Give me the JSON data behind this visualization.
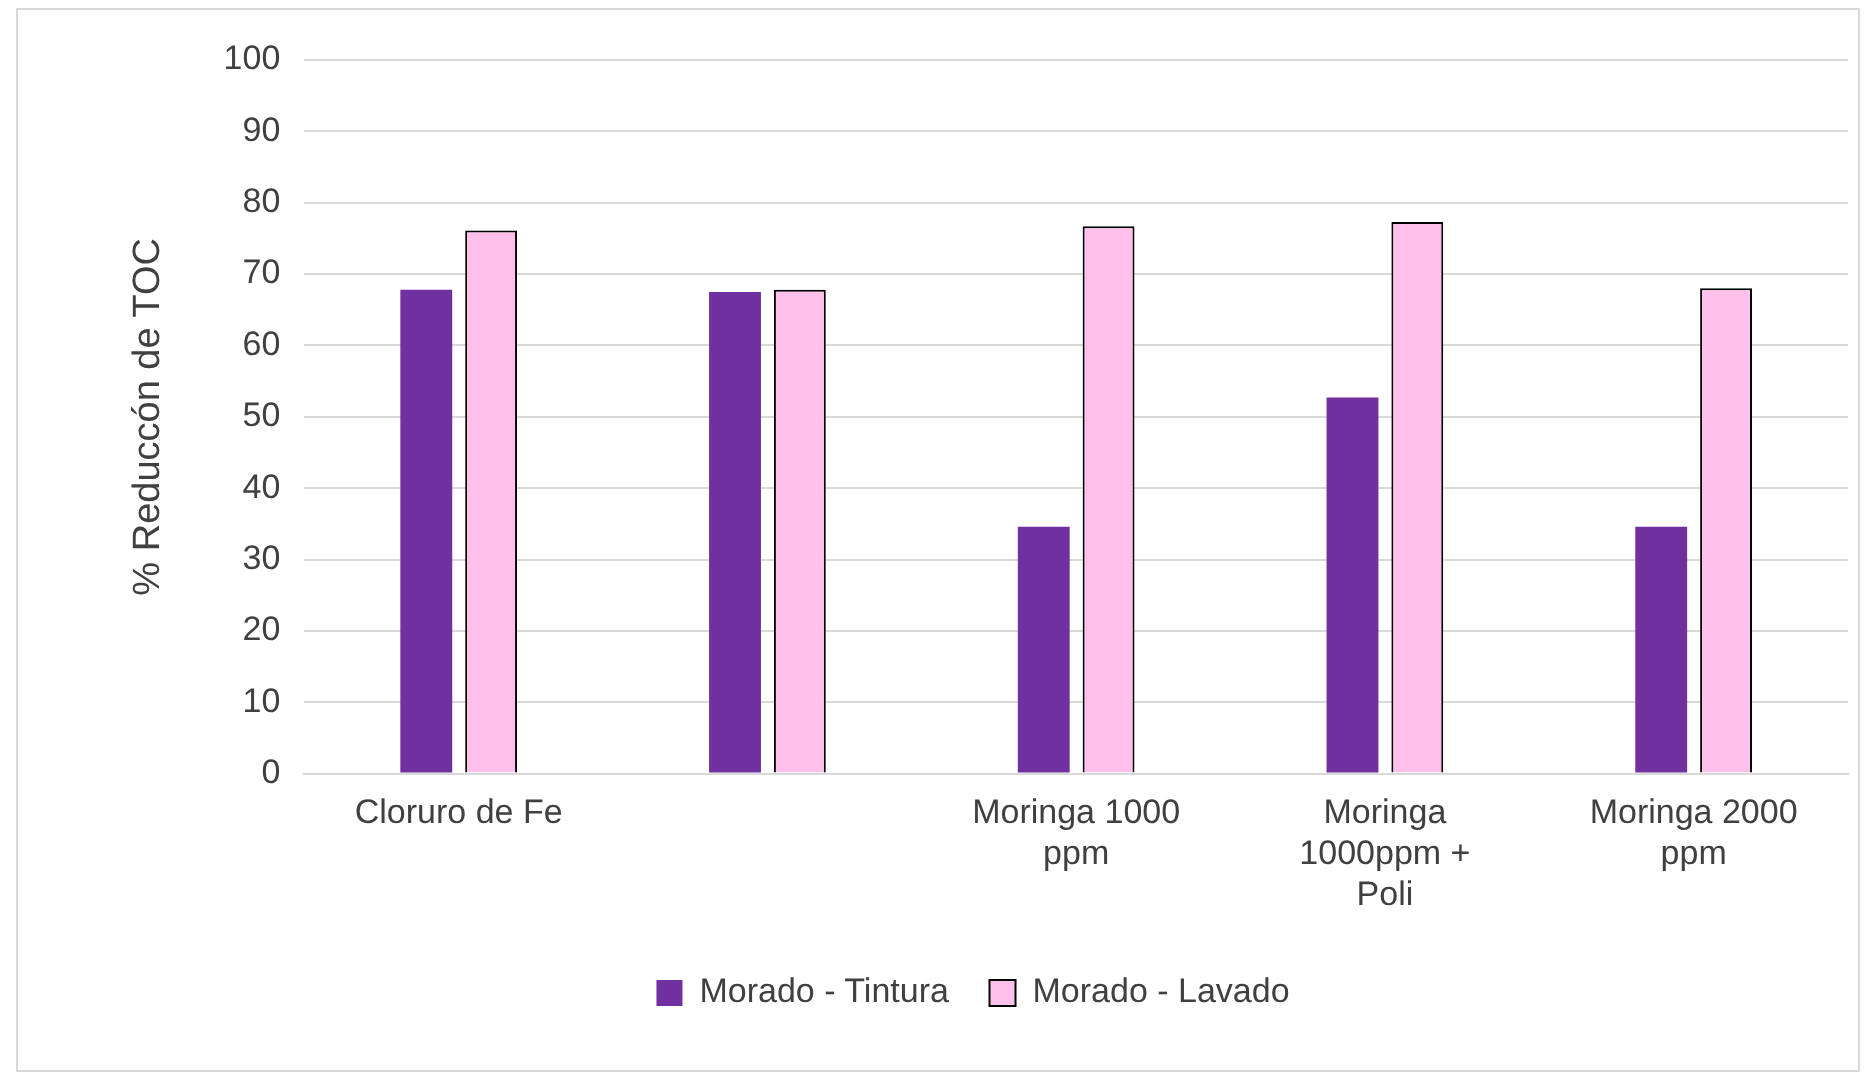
{
  "chart_data": {
    "type": "bar",
    "ylabel": "% Reduccón de TOC",
    "categories": [
      "Cloruro de Fe",
      null,
      "Moringa 1000 ppm",
      "Moringa 1000ppm + Poli",
      "Moringa 2000 ppm"
    ],
    "series": [
      {
        "name": "Morado - Tintura",
        "color": "#7030a0",
        "values": [
          67.8,
          67.5,
          34.6,
          52.7,
          34.6
        ]
      },
      {
        "name": "Morado - Lavado",
        "color": "#ffc1ec",
        "values": [
          76.1,
          67.8,
          76.7,
          77.3,
          68
        ]
      }
    ],
    "ylim": [
      0,
      100
    ],
    "yticks": [
      0,
      10,
      20,
      30,
      40,
      50,
      60,
      70,
      80,
      90,
      100
    ],
    "grid": "y",
    "legend": "bottom"
  }
}
